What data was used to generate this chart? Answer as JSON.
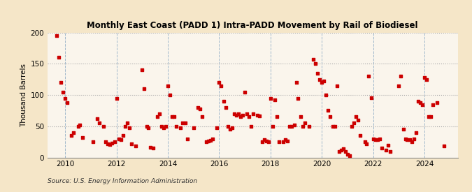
{
  "title": "Monthly East Coast (PADD 1) Intra-PADD Movement by Rail of Biodiesel",
  "ylabel": "Thousand Barrels",
  "source": "Source: U.S. Energy Information Administration",
  "fig_facecolor": "#f5e6c8",
  "plot_facecolor": "#faf5ec",
  "marker_color": "#cc0000",
  "xlim": [
    2009.3,
    2025.3
  ],
  "ylim": [
    0,
    200
  ],
  "yticks": [
    0,
    50,
    100,
    150,
    200
  ],
  "xticks": [
    2010,
    2012,
    2014,
    2016,
    2018,
    2020,
    2022,
    2024
  ],
  "vgrid_color": "#a0b8cc",
  "vgrid_style": "--",
  "vgrid_lw": 0.7,
  "hgrid_color": "#aaaaaa",
  "hgrid_style": ":",
  "hgrid_lw": 0.8,
  "data_points": [
    [
      2009.67,
      195
    ],
    [
      2009.75,
      160
    ],
    [
      2009.83,
      120
    ],
    [
      2009.92,
      105
    ],
    [
      2010.0,
      95
    ],
    [
      2010.08,
      88
    ],
    [
      2010.25,
      35
    ],
    [
      2010.33,
      40
    ],
    [
      2010.5,
      50
    ],
    [
      2010.58,
      52
    ],
    [
      2010.67,
      32
    ],
    [
      2011.08,
      25
    ],
    [
      2011.25,
      62
    ],
    [
      2011.33,
      55
    ],
    [
      2011.5,
      50
    ],
    [
      2011.58,
      25
    ],
    [
      2011.67,
      22
    ],
    [
      2011.75,
      21
    ],
    [
      2011.83,
      23
    ],
    [
      2011.92,
      25
    ],
    [
      2012.0,
      95
    ],
    [
      2012.08,
      30
    ],
    [
      2012.17,
      28
    ],
    [
      2012.25,
      35
    ],
    [
      2012.33,
      50
    ],
    [
      2012.42,
      55
    ],
    [
      2012.5,
      48
    ],
    [
      2012.58,
      22
    ],
    [
      2012.75,
      18
    ],
    [
      2013.0,
      140
    ],
    [
      2013.08,
      110
    ],
    [
      2013.17,
      50
    ],
    [
      2013.25,
      48
    ],
    [
      2013.33,
      16
    ],
    [
      2013.42,
      15
    ],
    [
      2013.58,
      65
    ],
    [
      2013.67,
      70
    ],
    [
      2013.75,
      50
    ],
    [
      2013.83,
      48
    ],
    [
      2013.92,
      50
    ],
    [
      2014.0,
      115
    ],
    [
      2014.08,
      100
    ],
    [
      2014.17,
      65
    ],
    [
      2014.25,
      66
    ],
    [
      2014.33,
      50
    ],
    [
      2014.5,
      48
    ],
    [
      2014.58,
      55
    ],
    [
      2014.67,
      55
    ],
    [
      2014.75,
      30
    ],
    [
      2015.0,
      48
    ],
    [
      2015.17,
      80
    ],
    [
      2015.25,
      78
    ],
    [
      2015.33,
      65
    ],
    [
      2015.5,
      25
    ],
    [
      2015.58,
      26
    ],
    [
      2015.67,
      27
    ],
    [
      2015.75,
      30
    ],
    [
      2015.92,
      48
    ],
    [
      2016.0,
      120
    ],
    [
      2016.08,
      115
    ],
    [
      2016.17,
      90
    ],
    [
      2016.25,
      80
    ],
    [
      2016.33,
      50
    ],
    [
      2016.42,
      45
    ],
    [
      2016.5,
      47
    ],
    [
      2016.58,
      70
    ],
    [
      2016.67,
      68
    ],
    [
      2016.75,
      70
    ],
    [
      2016.83,
      65
    ],
    [
      2016.92,
      68
    ],
    [
      2017.0,
      105
    ],
    [
      2017.08,
      70
    ],
    [
      2017.17,
      65
    ],
    [
      2017.25,
      50
    ],
    [
      2017.33,
      70
    ],
    [
      2017.5,
      68
    ],
    [
      2017.58,
      67
    ],
    [
      2017.67,
      25
    ],
    [
      2017.75,
      28
    ],
    [
      2017.83,
      26
    ],
    [
      2017.92,
      25
    ],
    [
      2018.0,
      95
    ],
    [
      2018.08,
      50
    ],
    [
      2018.17,
      92
    ],
    [
      2018.25,
      65
    ],
    [
      2018.33,
      25
    ],
    [
      2018.5,
      25
    ],
    [
      2018.58,
      28
    ],
    [
      2018.67,
      26
    ],
    [
      2018.75,
      50
    ],
    [
      2018.83,
      50
    ],
    [
      2018.92,
      52
    ],
    [
      2019.0,
      120
    ],
    [
      2019.08,
      95
    ],
    [
      2019.17,
      65
    ],
    [
      2019.25,
      50
    ],
    [
      2019.33,
      55
    ],
    [
      2019.5,
      50
    ],
    [
      2019.67,
      157
    ],
    [
      2019.75,
      150
    ],
    [
      2019.83,
      135
    ],
    [
      2019.92,
      125
    ],
    [
      2020.0,
      120
    ],
    [
      2020.08,
      122
    ],
    [
      2020.17,
      100
    ],
    [
      2020.25,
      75
    ],
    [
      2020.33,
      65
    ],
    [
      2020.42,
      50
    ],
    [
      2020.5,
      50
    ],
    [
      2020.58,
      115
    ],
    [
      2020.67,
      10
    ],
    [
      2020.75,
      12
    ],
    [
      2020.83,
      14
    ],
    [
      2020.92,
      10
    ],
    [
      2021.0,
      5
    ],
    [
      2021.08,
      3
    ],
    [
      2021.17,
      50
    ],
    [
      2021.25,
      55
    ],
    [
      2021.33,
      65
    ],
    [
      2021.42,
      60
    ],
    [
      2021.5,
      35
    ],
    [
      2021.67,
      25
    ],
    [
      2021.75,
      22
    ],
    [
      2021.83,
      130
    ],
    [
      2021.92,
      96
    ],
    [
      2022.0,
      30
    ],
    [
      2022.08,
      28
    ],
    [
      2022.17,
      29
    ],
    [
      2022.25,
      30
    ],
    [
      2022.33,
      15
    ],
    [
      2022.5,
      12
    ],
    [
      2022.58,
      20
    ],
    [
      2022.67,
      10
    ],
    [
      2023.0,
      115
    ],
    [
      2023.08,
      130
    ],
    [
      2023.17,
      45
    ],
    [
      2023.25,
      30
    ],
    [
      2023.33,
      28
    ],
    [
      2023.42,
      28
    ],
    [
      2023.5,
      25
    ],
    [
      2023.58,
      30
    ],
    [
      2023.67,
      40
    ],
    [
      2023.75,
      90
    ],
    [
      2023.83,
      88
    ],
    [
      2023.92,
      85
    ],
    [
      2024.0,
      128
    ],
    [
      2024.08,
      125
    ],
    [
      2024.17,
      65
    ],
    [
      2024.25,
      65
    ],
    [
      2024.33,
      85
    ],
    [
      2024.5,
      88
    ],
    [
      2024.75,
      19
    ]
  ]
}
